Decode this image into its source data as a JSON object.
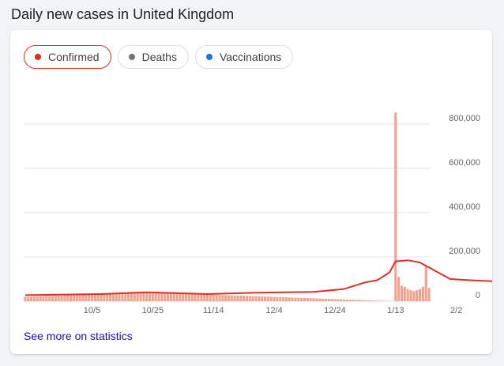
{
  "title": "Daily new cases in United Kingdom",
  "filters": [
    {
      "label": "Confirmed",
      "color": "#d93025",
      "selected": true
    },
    {
      "label": "Deaths",
      "color": "#757575",
      "selected": false
    },
    {
      "label": "Vaccinations",
      "color": "#1a73e8",
      "selected": false
    }
  ],
  "colors": {
    "bars": "#f4a08d",
    "line": "#d93025",
    "grid": "#e0e0e0"
  },
  "link_text": "See more on statistics",
  "chart_data": {
    "type": "bar",
    "series": [
      {
        "kind": "daily",
        "values": [
          20000,
          20500,
          21000,
          21500,
          22000,
          22500,
          23000,
          23500,
          24000,
          24500,
          25000,
          25500,
          26000,
          26500,
          27000,
          27500,
          28000,
          28500,
          29000,
          29500,
          30000,
          30500,
          31000,
          31500,
          32000,
          32500,
          33000,
          33500,
          34000,
          34500,
          35000,
          35500,
          36000,
          36500,
          37000,
          37500,
          38000,
          38500,
          39000,
          39500,
          40000,
          40000,
          39500,
          39000,
          38500,
          38000,
          37500,
          37000,
          36500,
          36000,
          35500,
          35000,
          34500,
          34000,
          33500,
          33000,
          32500,
          32000,
          31500,
          31000,
          30500,
          30000,
          29500,
          29000,
          28500,
          28000,
          27500,
          27000,
          26500,
          26000,
          25500,
          25000,
          24500,
          24000,
          23500,
          23000,
          22500,
          22000,
          21500,
          21000,
          20500,
          20000,
          19500,
          19000,
          18500,
          18000,
          17500,
          17000,
          16500,
          16000,
          15500,
          15000,
          14500,
          14000,
          13500,
          13000,
          12500,
          12000,
          11500,
          11000,
          10500,
          10000,
          9500,
          9000,
          8500,
          8000,
          7500,
          7000,
          6500,
          6000,
          5500,
          5000,
          4500,
          4000,
          3500,
          3000,
          2500,
          2000,
          1500,
          1000,
          500,
          0,
          852000,
          110000,
          70000,
          65000,
          55000,
          50000,
          45000,
          50000,
          55000,
          65000,
          160000,
          60000
        ]
      },
      {
        "kind": "average",
        "points": [
          [
            0,
            27000
          ],
          [
            25,
            32000
          ],
          [
            40,
            40000
          ],
          [
            60,
            32000
          ],
          [
            75,
            38000
          ],
          [
            95,
            42000
          ],
          [
            105,
            55000
          ],
          [
            112,
            85000
          ],
          [
            116,
            95000
          ],
          [
            120,
            130000
          ],
          [
            122,
            180000
          ],
          [
            126,
            185000
          ],
          [
            130,
            175000
          ],
          [
            136,
            130000
          ],
          [
            140,
            100000
          ],
          [
            146,
            95000
          ],
          [
            154,
            90000
          ],
          [
            158,
            85000
          ],
          [
            160,
            195000
          ],
          [
            166,
            195000
          ],
          [
            168,
            90000
          ],
          [
            170,
            70000
          ],
          [
            172,
            65000
          ],
          [
            174,
            80000
          ],
          [
            176,
            78000
          ],
          [
            178,
            85000
          ]
        ]
      }
    ],
    "x_ticks": [
      "10/5",
      "10/25",
      "11/14",
      "12/4",
      "12/24",
      "1/13",
      "2/2"
    ],
    "y_ticks": [
      "0",
      "200,000",
      "400,000",
      "600,000",
      "800,000"
    ],
    "ylim": [
      0,
      800000
    ],
    "grid": true
  }
}
